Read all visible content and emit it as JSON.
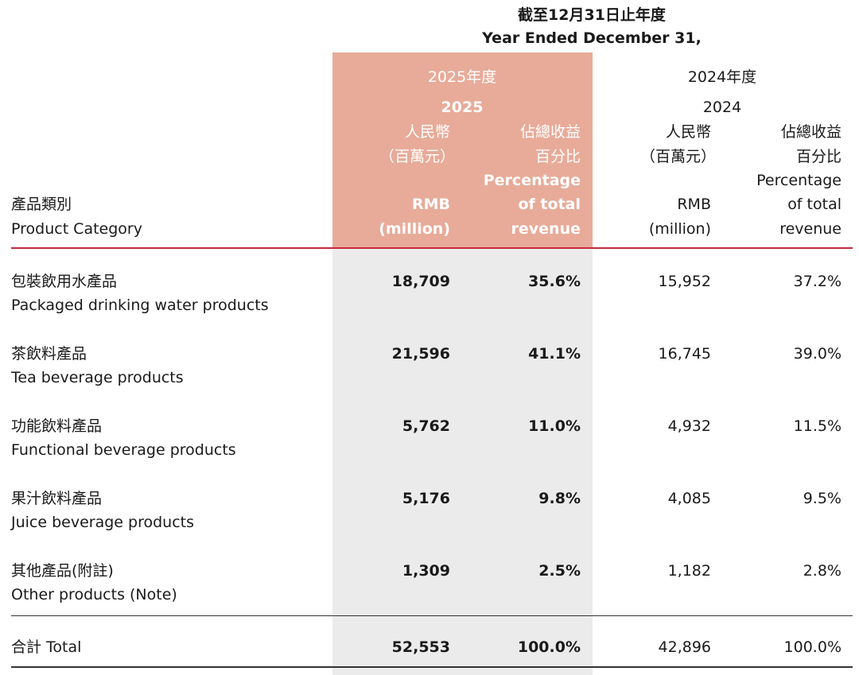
{
  "header": {
    "period_zh": "截至12月31日止年度",
    "period_en": "Year Ended December 31,",
    "y2025_zh": "2025年度",
    "y2025": "2025",
    "y2024_zh": "2024年度",
    "y2024": "2024",
    "rmb_zh": "人民幣",
    "rmb_unit_zh": "（百萬元）",
    "pct_zh1": "佔總收益",
    "pct_zh2": "百分比",
    "pct_en1": "Percentage",
    "pct_en2": "of total",
    "pct_en3": "revenue",
    "rmb_en1": "RMB",
    "rmb_en2": "(million)",
    "category_zh": "產品類別",
    "category_en": "Product Category"
  },
  "rows": [
    {
      "zh": "包裝飲用水產品",
      "en": "Packaged drinking water products",
      "rmb2025": "18,709",
      "pct2025": "35.6%",
      "rmb2024": "15,952",
      "pct2024": "37.2%"
    },
    {
      "zh": "茶飲料產品",
      "en": "Tea beverage products",
      "rmb2025": "21,596",
      "pct2025": "41.1%",
      "rmb2024": "16,745",
      "pct2024": "39.0%"
    },
    {
      "zh": "功能飲料產品",
      "en": "Functional beverage products",
      "rmb2025": "5,762",
      "pct2025": "11.0%",
      "rmb2024": "4,932",
      "pct2024": "11.5%"
    },
    {
      "zh": "果汁飲料產品",
      "en": "Juice beverage products",
      "rmb2025": "5,176",
      "pct2025": "9.8%",
      "rmb2024": "4,085",
      "pct2024": "9.5%"
    },
    {
      "zh": "其他產品(附註)",
      "en": "Other products (Note)",
      "rmb2025": "1,309",
      "pct2025": "2.5%",
      "rmb2024": "1,182",
      "pct2024": "2.8%"
    }
  ],
  "total": {
    "label": "合計 Total",
    "rmb2025": "52,553",
    "pct2025": "100.0%",
    "rmb2024": "42,896",
    "pct2024": "100.0%"
  },
  "colors": {
    "highlight_header": "#e8ab99",
    "highlight_body": "#ebebeb",
    "rule_accent": "#c8273f"
  }
}
